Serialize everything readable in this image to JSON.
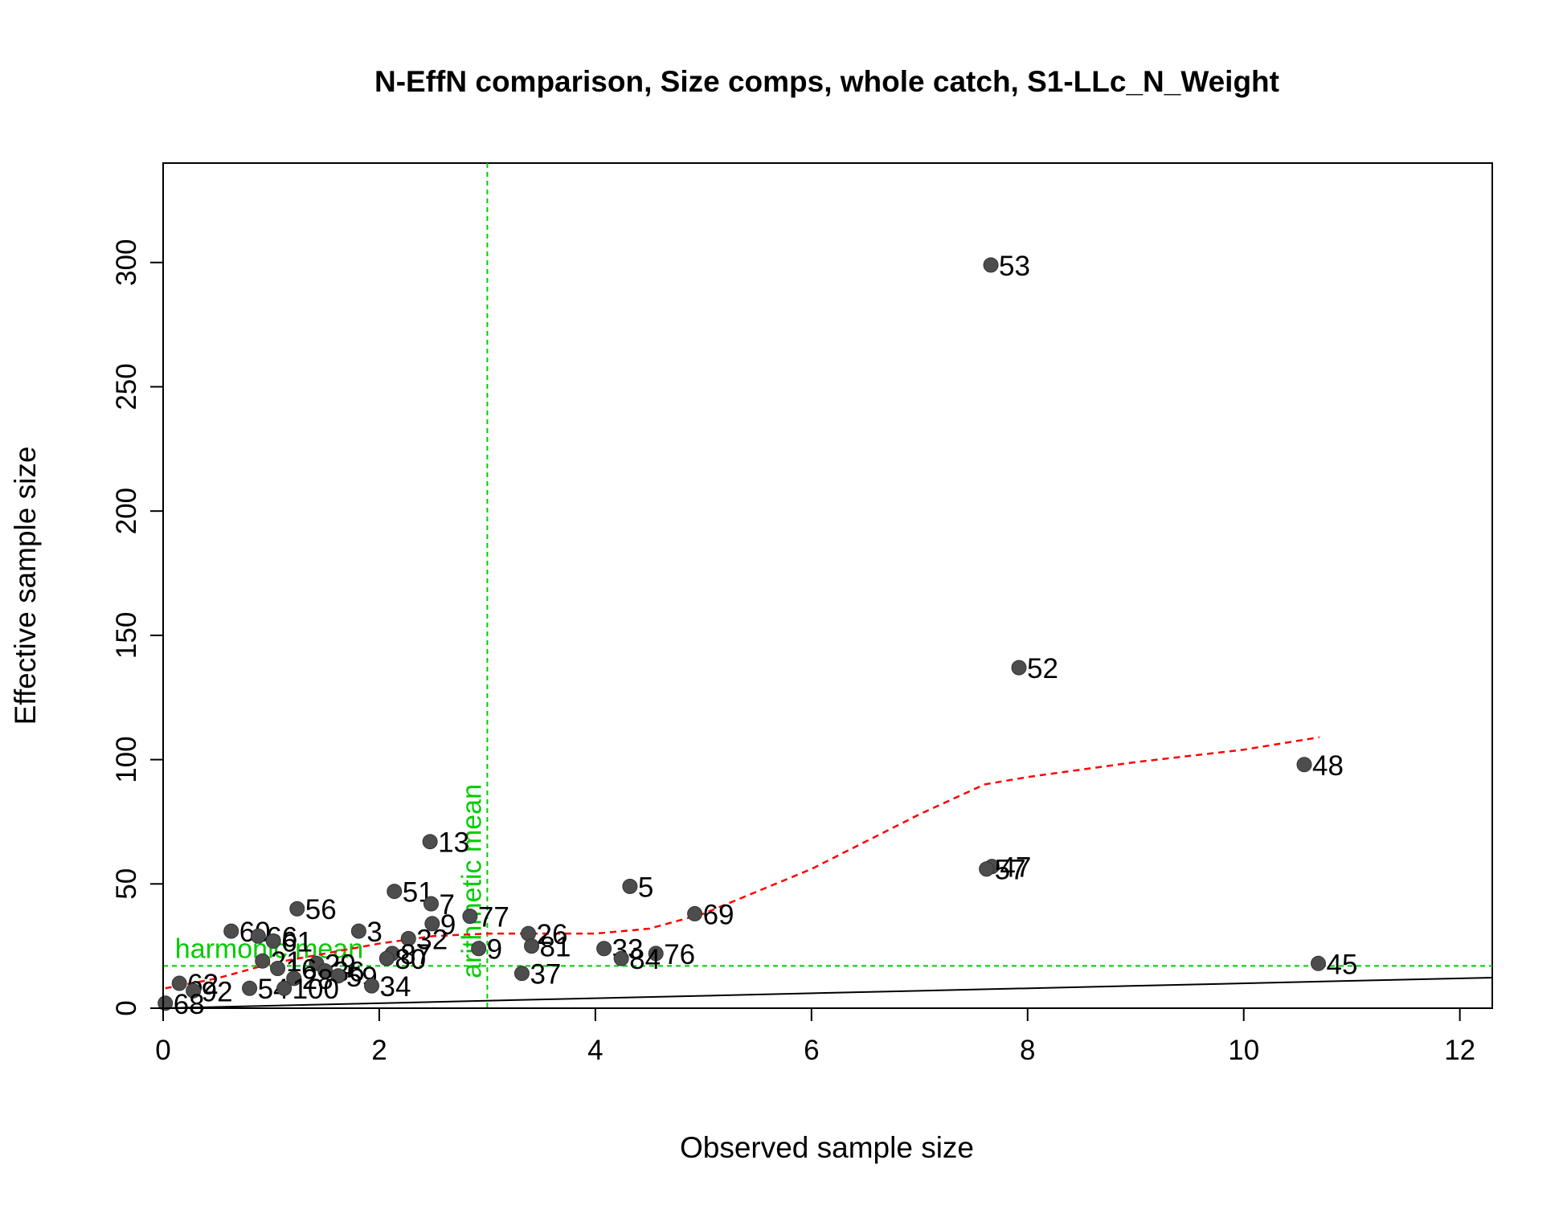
{
  "chart_data": {
    "type": "scatter",
    "title": "N-EffN comparison, Size comps, whole catch, S1-LLc_N_Weight",
    "xlabel": "Observed sample size",
    "ylabel": "Effective sample size",
    "xlim": [
      0,
      12.3
    ],
    "ylim": [
      0,
      340
    ],
    "x_ticks": [
      "0",
      "2",
      "4",
      "6",
      "8",
      "10",
      "12"
    ],
    "y_ticks": [
      "0",
      "50",
      "100",
      "150",
      "200",
      "250",
      "300"
    ],
    "grid": false,
    "point_color": "#4d4d4d",
    "points": [
      {
        "label": "53",
        "x": 7.66,
        "y": 299
      },
      {
        "label": "52",
        "x": 7.92,
        "y": 137
      },
      {
        "label": "48",
        "x": 10.56,
        "y": 98
      },
      {
        "label": "13",
        "x": 2.47,
        "y": 67
      },
      {
        "label": "5",
        "x": 4.32,
        "y": 49
      },
      {
        "label": "51",
        "x": 2.14,
        "y": 47
      },
      {
        "label": "47",
        "x": 7.67,
        "y": 57
      },
      {
        "label": "57",
        "x": 7.62,
        "y": 56
      },
      {
        "label": "7",
        "x": 2.48,
        "y": 42
      },
      {
        "label": "56",
        "x": 1.24,
        "y": 40
      },
      {
        "label": "69",
        "x": 4.92,
        "y": 38
      },
      {
        "label": "77",
        "x": 2.84,
        "y": 37
      },
      {
        "label": "9",
        "x": 2.49,
        "y": 34
      },
      {
        "label": "3",
        "x": 1.81,
        "y": 31
      },
      {
        "label": "60",
        "x": 0.63,
        "y": 31
      },
      {
        "label": "66",
        "x": 0.88,
        "y": 29
      },
      {
        "label": "26",
        "x": 3.38,
        "y": 30
      },
      {
        "label": "32",
        "x": 2.27,
        "y": 28
      },
      {
        "label": "81",
        "x": 3.41,
        "y": 25
      },
      {
        "label": "61",
        "x": 1.02,
        "y": 27
      },
      {
        "label": "9",
        "x": 2.92,
        "y": 24
      },
      {
        "label": "33",
        "x": 4.08,
        "y": 24
      },
      {
        "label": "76",
        "x": 4.56,
        "y": 22
      },
      {
        "label": "84",
        "x": 4.24,
        "y": 20
      },
      {
        "label": "87",
        "x": 2.12,
        "y": 22
      },
      {
        "label": "80",
        "x": 2.07,
        "y": 20
      },
      {
        "label": "45",
        "x": 10.69,
        "y": 18
      },
      {
        "label": "37",
        "x": 3.32,
        "y": 14
      },
      {
        "label": "21",
        "x": 0.92,
        "y": 19
      },
      {
        "label": "29",
        "x": 1.42,
        "y": 18
      },
      {
        "label": "36",
        "x": 1.5,
        "y": 15
      },
      {
        "label": "59",
        "x": 1.62,
        "y": 13
      },
      {
        "label": "16",
        "x": 1.06,
        "y": 16
      },
      {
        "label": "28",
        "x": 1.21,
        "y": 12
      },
      {
        "label": "34",
        "x": 1.93,
        "y": 9
      },
      {
        "label": "54",
        "x": 0.8,
        "y": 8
      },
      {
        "label": "100",
        "x": 1.12,
        "y": 8
      },
      {
        "label": "62",
        "x": 0.15,
        "y": 10
      },
      {
        "label": "92",
        "x": 0.28,
        "y": 7
      },
      {
        "label": "68",
        "x": 0.02,
        "y": 2
      }
    ],
    "lines": [
      {
        "kind": "one-to-one",
        "color": "#000000",
        "style": "solid",
        "x": [
          0,
          12.3
        ],
        "y": [
          0,
          12.3
        ]
      },
      {
        "kind": "smoother",
        "color": "#ff0000",
        "style": "dashed",
        "x": [
          0.02,
          0.5,
          1.0,
          1.5,
          2.0,
          2.5,
          3.0,
          3.5,
          4.0,
          4.5,
          5.0,
          6.0,
          7.0,
          7.6,
          8.0,
          9.0,
          10.0,
          10.7
        ],
        "y": [
          8,
          12,
          18,
          22,
          26,
          29,
          30,
          30,
          30,
          32,
          38,
          56,
          78,
          90,
          93,
          99,
          104,
          109
        ]
      }
    ],
    "reference_lines": [
      {
        "label": "harmonic mean",
        "orientation": "horizontal",
        "value": 17,
        "color": "#00cc00"
      },
      {
        "label": "arithmetic mean",
        "orientation": "vertical",
        "value": 3.0,
        "color": "#00cc00"
      }
    ]
  }
}
